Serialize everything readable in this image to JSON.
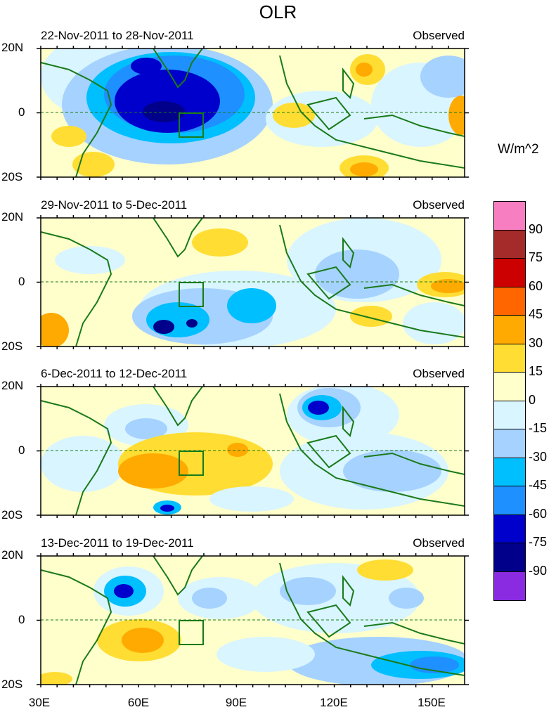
{
  "title": "OLR",
  "units": "W/m^2",
  "panels": [
    {
      "date_range": "22-Nov-2011 to 28-Nov-2011",
      "label": "Observed"
    },
    {
      "date_range": "29-Nov-2011 to 5-Dec-2011",
      "label": "Observed"
    },
    {
      "date_range": "6-Dec-2011 to 12-Dec-2011",
      "label": "Observed"
    },
    {
      "date_range": "13-Dec-2011 to 19-Dec-2011",
      "label": "Observed"
    }
  ],
  "lat_labels": {
    "top": "20N",
    "mid": "0",
    "bottom": "20S"
  },
  "lon_labels": [
    "30E",
    "60E",
    "90E",
    "120E",
    "150E"
  ],
  "colorbar": {
    "colors": [
      "#f77fc1",
      "#a52a2a",
      "#cc0000",
      "#ff6600",
      "#ffaa00",
      "#ffdd33",
      "#ffffcc",
      "#d9f5ff",
      "#a6d2ff",
      "#00bfff",
      "#1e90ff",
      "#0000cd",
      "#00008b",
      "#8a2be2"
    ],
    "labels": [
      "90",
      "75",
      "60",
      "45",
      "30",
      "15",
      "0",
      "-15",
      "-30",
      "-45",
      "-60",
      "-75",
      "-90"
    ]
  }
}
